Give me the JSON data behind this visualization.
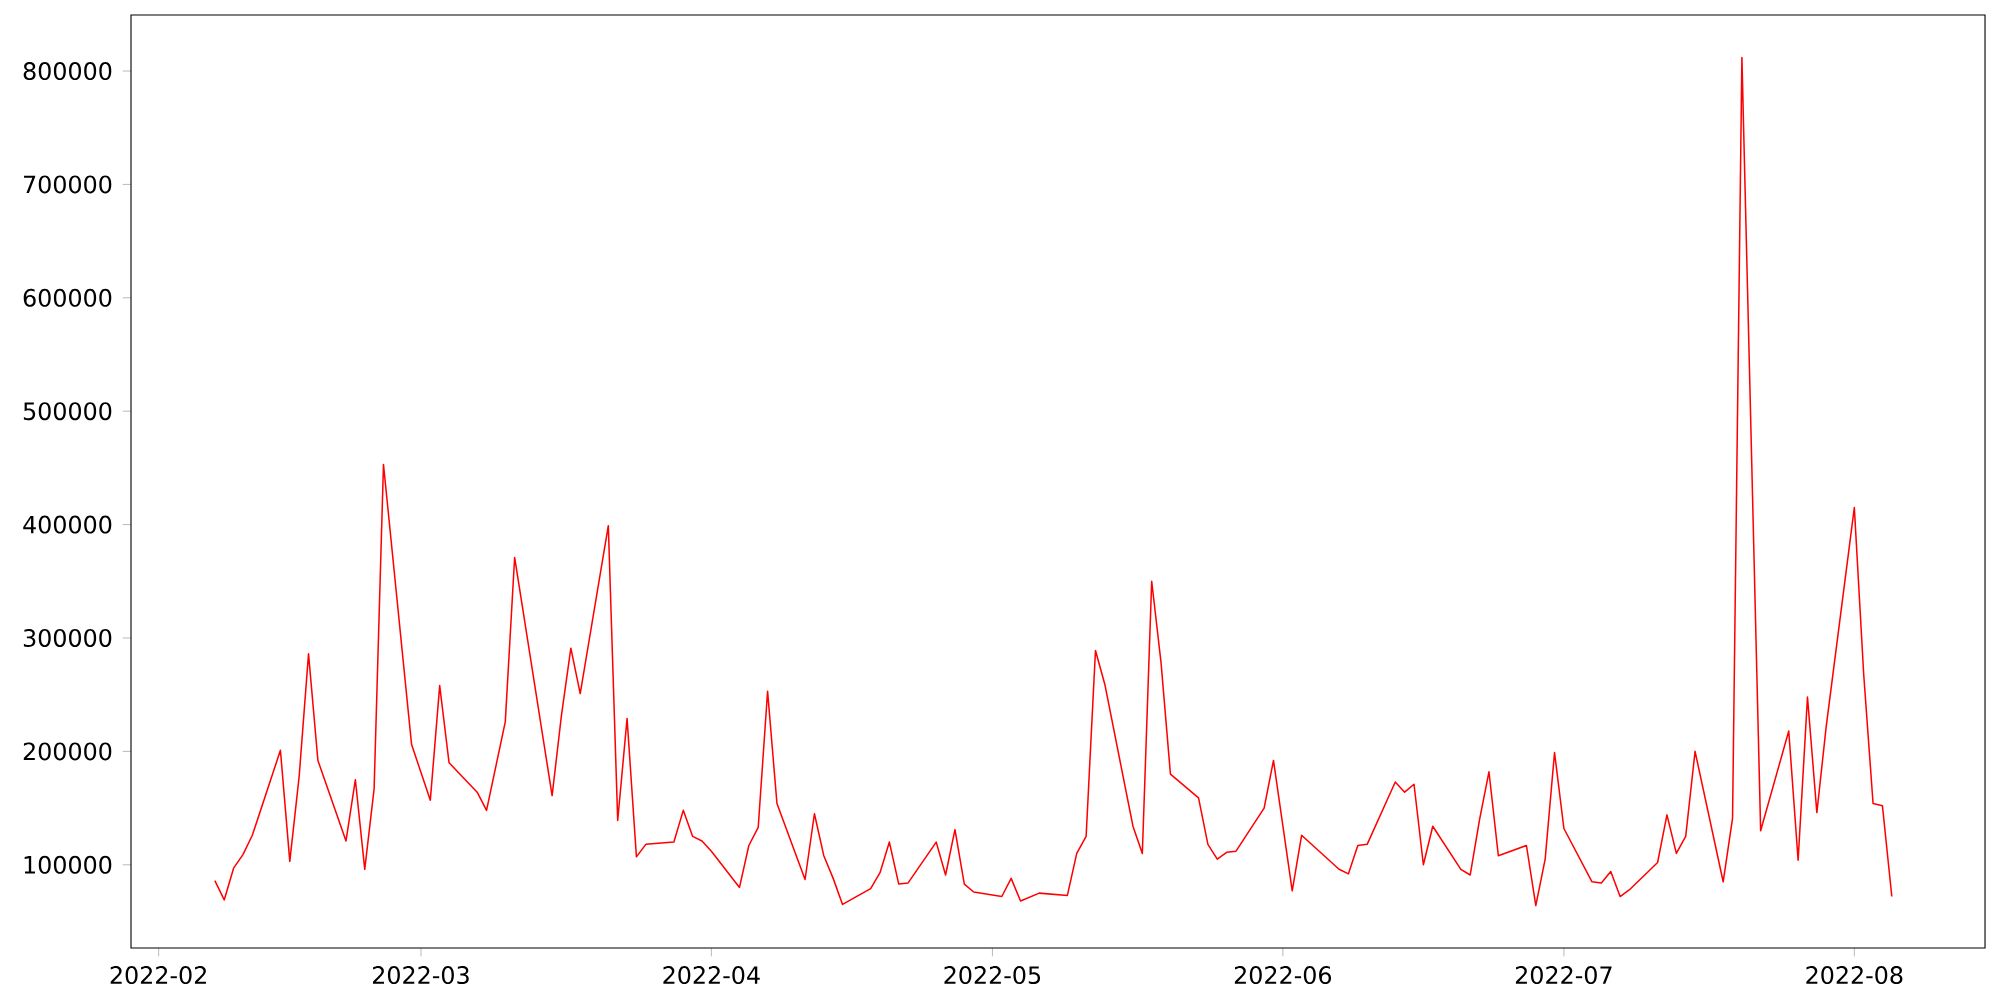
{
  "chart_data": {
    "type": "line",
    "color": "#ff0000",
    "x": [
      "2022-02-07",
      "2022-02-08",
      "2022-02-09",
      "2022-02-10",
      "2022-02-11",
      "2022-02-14",
      "2022-02-15",
      "2022-02-16",
      "2022-02-17",
      "2022-02-18",
      "2022-02-21",
      "2022-02-22",
      "2022-02-23",
      "2022-02-24",
      "2022-02-25",
      "2022-02-28",
      "2022-03-02",
      "2022-03-03",
      "2022-03-04",
      "2022-03-07",
      "2022-03-08",
      "2022-03-10",
      "2022-03-11",
      "2022-03-15",
      "2022-03-16",
      "2022-03-17",
      "2022-03-18",
      "2022-03-21",
      "2022-03-22",
      "2022-03-23",
      "2022-03-24",
      "2022-03-25",
      "2022-03-28",
      "2022-03-29",
      "2022-03-30",
      "2022-03-31",
      "2022-04-01",
      "2022-04-04",
      "2022-04-05",
      "2022-04-06",
      "2022-04-07",
      "2022-04-08",
      "2022-04-11",
      "2022-04-12",
      "2022-04-13",
      "2022-04-14",
      "2022-04-15",
      "2022-04-18",
      "2022-04-19",
      "2022-04-20",
      "2022-04-21",
      "2022-04-22",
      "2022-04-25",
      "2022-04-26",
      "2022-04-27",
      "2022-04-28",
      "2022-04-29",
      "2022-05-02",
      "2022-05-03",
      "2022-05-04",
      "2022-05-06",
      "2022-05-09",
      "2022-05-10",
      "2022-05-11",
      "2022-05-12",
      "2022-05-13",
      "2022-05-16",
      "2022-05-17",
      "2022-05-18",
      "2022-05-19",
      "2022-05-20",
      "2022-05-23",
      "2022-05-24",
      "2022-05-25",
      "2022-05-26",
      "2022-05-27",
      "2022-05-30",
      "2022-05-31",
      "2022-06-02",
      "2022-06-03",
      "2022-06-07",
      "2022-06-08",
      "2022-06-09",
      "2022-06-10",
      "2022-06-13",
      "2022-06-14",
      "2022-06-15",
      "2022-06-16",
      "2022-06-17",
      "2022-06-20",
      "2022-06-21",
      "2022-06-22",
      "2022-06-23",
      "2022-06-24",
      "2022-06-27",
      "2022-06-28",
      "2022-06-29",
      "2022-06-30",
      "2022-07-01",
      "2022-07-04",
      "2022-07-05",
      "2022-07-06",
      "2022-07-07",
      "2022-07-08",
      "2022-07-11",
      "2022-07-12",
      "2022-07-13",
      "2022-07-14",
      "2022-07-15",
      "2022-07-18",
      "2022-07-19",
      "2022-07-20",
      "2022-07-22",
      "2022-07-25",
      "2022-07-26",
      "2022-07-27",
      "2022-07-28",
      "2022-07-29",
      "2022-08-01",
      "2022-08-02",
      "2022-08-03",
      "2022-08-04",
      "2022-08-05"
    ],
    "values": [
      86000,
      69000,
      97000,
      109000,
      126000,
      201000,
      103000,
      178000,
      286000,
      192000,
      121000,
      175000,
      96000,
      167000,
      453000,
      206000,
      157000,
      258000,
      190000,
      164000,
      148000,
      226000,
      371000,
      161000,
      232000,
      291000,
      251000,
      399000,
      139000,
      229000,
      107000,
      118000,
      120000,
      148000,
      125000,
      121000,
      112000,
      80000,
      117000,
      133000,
      253000,
      154000,
      87000,
      145000,
      108000,
      88000,
      65000,
      79000,
      93000,
      120000,
      83000,
      84000,
      120000,
      91000,
      131000,
      83000,
      76000,
      72000,
      88000,
      68000,
      75000,
      73000,
      110000,
      125000,
      289000,
      259000,
      134000,
      110000,
      350000,
      278000,
      180000,
      159000,
      118000,
      105000,
      111000,
      112000,
      150000,
      192000,
      77000,
      126000,
      96000,
      92000,
      117000,
      118000,
      173000,
      164000,
      171000,
      100000,
      134000,
      96000,
      91000,
      140000,
      182000,
      108000,
      117000,
      64000,
      105000,
      199000,
      132000,
      85000,
      84000,
      94000,
      72000,
      78000,
      102000,
      144000,
      110000,
      125000,
      200000,
      85000,
      141000,
      812000,
      130000,
      218000,
      104000,
      248000,
      146000,
      222000,
      415000,
      268000,
      154000,
      152000,
      72000
    ],
    "xlim": [
      "2022-01-29T01:12",
      "2022-08-14T22:48"
    ],
    "ylim": [
      26600,
      849400
    ],
    "xticks": [
      "2022-02",
      "2022-03",
      "2022-04",
      "2022-05",
      "2022-06",
      "2022-07",
      "2022-08"
    ],
    "yticks": [
      100000,
      200000,
      300000,
      400000,
      500000,
      600000,
      700000,
      800000
    ]
  }
}
